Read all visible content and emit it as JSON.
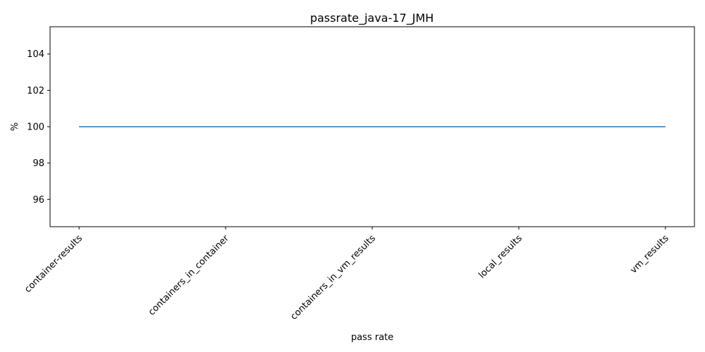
{
  "chart_data": {
    "type": "line",
    "title": "passrate_java-17_JMH",
    "xlabel": "pass rate",
    "ylabel": "%",
    "categories": [
      "container-results",
      "containers_in_container",
      "containers_in_vm_results",
      "local_results",
      "vm_results"
    ],
    "series": [
      {
        "values": [
          100,
          100,
          100,
          100,
          100
        ],
        "color": "#1f77b4"
      }
    ],
    "ylim": [
      94.5,
      105.5
    ],
    "yticks": [
      96,
      98,
      100,
      102,
      104
    ],
    "grid": false,
    "legend": "none"
  }
}
